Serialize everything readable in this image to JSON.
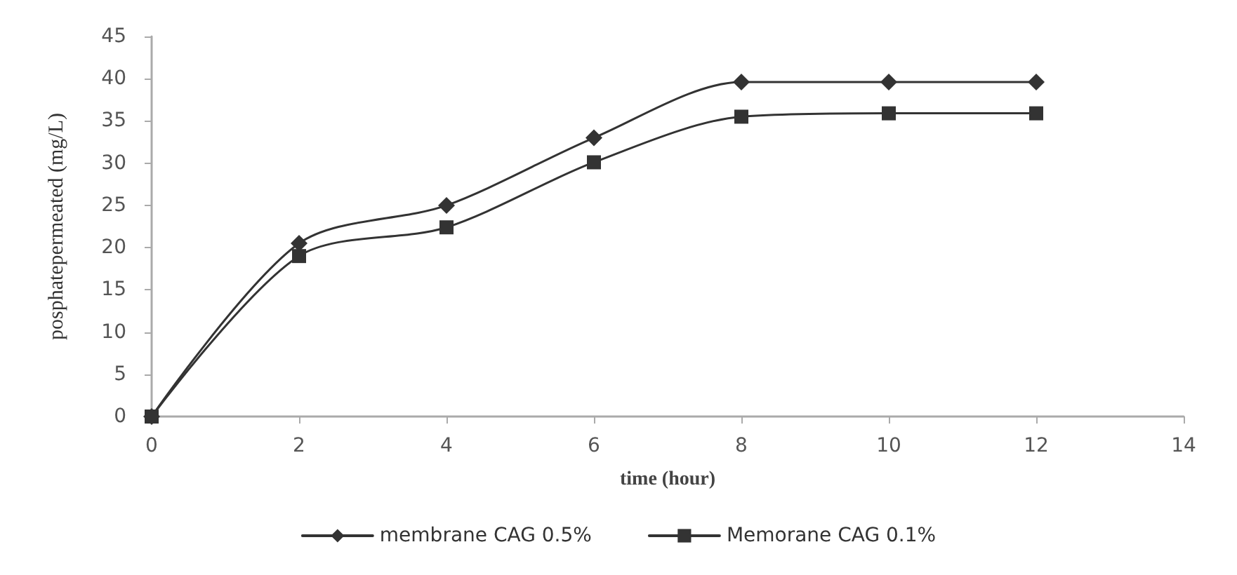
{
  "chart_data": {
    "type": "line",
    "xlabel": "time (hour)",
    "ylabel": "posphatepermeated (mg/L)",
    "x": [
      0,
      2,
      4,
      6,
      8,
      10,
      12
    ],
    "series": [
      {
        "name": "membrane CAG 0.5%",
        "color": "#333333",
        "marker": "diamond",
        "values": [
          0,
          20.5,
          25,
          33,
          39.6,
          39.6,
          39.6
        ]
      },
      {
        "name": "Memorane CAG 0.1%",
        "color": "#333333",
        "marker": "square",
        "values": [
          0,
          19,
          22.4,
          30.1,
          35.5,
          35.9,
          35.9
        ]
      }
    ],
    "xlim": [
      0,
      14
    ],
    "xticks": [
      0,
      2,
      4,
      6,
      8,
      10,
      12,
      14
    ],
    "ylim": [
      0,
      45
    ],
    "yticks": [
      0,
      5,
      10,
      15,
      20,
      25,
      30,
      35,
      40,
      45
    ],
    "grid": false,
    "legend": "bottom",
    "line_style": "solid"
  }
}
